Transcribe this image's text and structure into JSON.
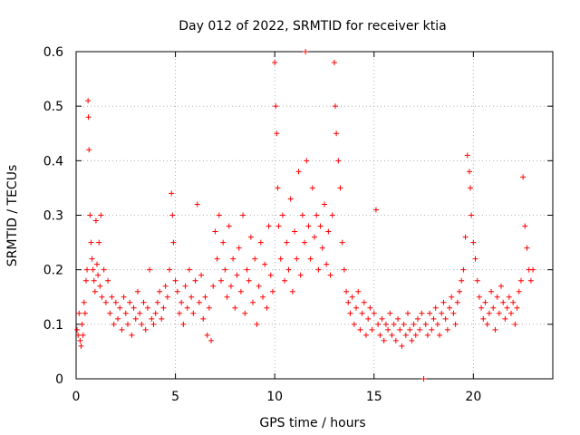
{
  "chart_data": {
    "type": "scatter",
    "title": "Day 012 of 2022, SRMTID for receiver ktia",
    "xlabel": "GPS time / hours",
    "ylabel": "SRMTID / TECUs",
    "xlim": [
      0,
      24
    ],
    "ylim": [
      0,
      0.6
    ],
    "xticks": [
      0,
      5,
      10,
      15,
      20
    ],
    "xtick_labels": [
      "0",
      "5",
      "10",
      "15",
      "20"
    ],
    "yticks": [
      0,
      0.1,
      0.2,
      0.3,
      0.4,
      0.5,
      0.6
    ],
    "ytick_labels": [
      "0",
      "0.1",
      "0.2",
      "0.3",
      "0.4",
      "0.5",
      "0.6"
    ],
    "grid": true,
    "marker": "+",
    "series": [
      {
        "name": "SRMTID",
        "color": "#ff0000",
        "x": [
          0.05,
          0.1,
          0.15,
          0.2,
          0.25,
          0.3,
          0.35,
          0.4,
          0.45,
          0.5,
          0.55,
          0.6,
          0.62,
          0.65,
          0.7,
          0.75,
          0.8,
          0.85,
          0.9,
          0.95,
          1.0,
          1.05,
          1.1,
          1.15,
          1.2,
          1.25,
          1.3,
          1.4,
          1.5,
          1.6,
          1.7,
          1.8,
          1.9,
          2.0,
          2.1,
          2.2,
          2.3,
          2.4,
          2.5,
          2.6,
          2.7,
          2.8,
          2.9,
          3.0,
          3.1,
          3.2,
          3.3,
          3.4,
          3.5,
          3.6,
          3.7,
          3.8,
          3.9,
          4.0,
          4.1,
          4.2,
          4.3,
          4.4,
          4.5,
          4.6,
          4.7,
          4.8,
          4.85,
          4.9,
          5.0,
          5.1,
          5.2,
          5.3,
          5.4,
          5.5,
          5.6,
          5.7,
          5.8,
          5.9,
          6.0,
          6.1,
          6.2,
          6.3,
          6.4,
          6.5,
          6.6,
          6.7,
          6.8,
          6.9,
          7.0,
          7.1,
          7.2,
          7.3,
          7.4,
          7.5,
          7.6,
          7.7,
          7.8,
          7.9,
          8.0,
          8.1,
          8.2,
          8.3,
          8.4,
          8.5,
          8.6,
          8.7,
          8.8,
          8.9,
          9.0,
          9.1,
          9.2,
          9.3,
          9.4,
          9.5,
          9.6,
          9.7,
          9.8,
          9.9,
          10.0,
          10.05,
          10.1,
          10.15,
          10.2,
          10.3,
          10.4,
          10.5,
          10.6,
          10.7,
          10.8,
          10.9,
          11.0,
          11.1,
          11.2,
          11.3,
          11.4,
          11.5,
          11.55,
          11.6,
          11.7,
          11.8,
          11.9,
          12.0,
          12.1,
          12.2,
          12.3,
          12.4,
          12.5,
          12.6,
          12.7,
          12.8,
          12.9,
          13.0,
          13.05,
          13.1,
          13.2,
          13.3,
          13.4,
          13.5,
          13.6,
          13.7,
          13.8,
          13.9,
          14.0,
          14.1,
          14.2,
          14.3,
          14.4,
          14.5,
          14.6,
          14.7,
          14.8,
          14.9,
          15.0,
          15.1,
          15.2,
          15.3,
          15.4,
          15.5,
          15.6,
          15.7,
          15.8,
          15.9,
          16.0,
          16.1,
          16.2,
          16.3,
          16.4,
          16.5,
          16.6,
          16.7,
          16.8,
          16.9,
          17.0,
          17.1,
          17.2,
          17.3,
          17.4,
          17.5,
          17.6,
          17.7,
          17.8,
          17.9,
          18.0,
          18.1,
          18.2,
          18.3,
          18.4,
          18.5,
          18.6,
          18.7,
          18.8,
          18.9,
          19.0,
          19.1,
          19.2,
          19.3,
          19.4,
          19.5,
          19.6,
          19.7,
          19.8,
          19.85,
          19.9,
          20.0,
          20.1,
          20.2,
          20.3,
          20.4,
          20.5,
          20.6,
          20.7,
          20.8,
          20.9,
          21.0,
          21.1,
          21.2,
          21.3,
          21.4,
          21.5,
          21.6,
          21.7,
          21.8,
          21.9,
          22.0,
          22.1,
          22.2,
          22.3,
          22.4,
          22.5,
          22.6,
          22.7,
          22.8,
          22.9,
          23.0
        ],
        "y": [
          0.09,
          0.08,
          0.12,
          0.07,
          0.06,
          0.1,
          0.08,
          0.14,
          0.12,
          0.18,
          0.2,
          0.51,
          0.48,
          0.42,
          0.3,
          0.25,
          0.22,
          0.2,
          0.18,
          0.16,
          0.29,
          0.21,
          0.19,
          0.25,
          0.17,
          0.3,
          0.15,
          0.2,
          0.14,
          0.18,
          0.12,
          0.15,
          0.1,
          0.14,
          0.11,
          0.13,
          0.09,
          0.15,
          0.12,
          0.1,
          0.14,
          0.08,
          0.13,
          0.11,
          0.16,
          0.12,
          0.1,
          0.14,
          0.09,
          0.13,
          0.2,
          0.11,
          0.1,
          0.12,
          0.14,
          0.16,
          0.11,
          0.13,
          0.17,
          0.15,
          0.2,
          0.34,
          0.3,
          0.25,
          0.18,
          0.16,
          0.12,
          0.14,
          0.1,
          0.17,
          0.13,
          0.2,
          0.15,
          0.12,
          0.18,
          0.32,
          0.14,
          0.19,
          0.11,
          0.15,
          0.08,
          0.13,
          0.07,
          0.17,
          0.27,
          0.22,
          0.3,
          0.18,
          0.25,
          0.2,
          0.15,
          0.28,
          0.17,
          0.22,
          0.13,
          0.19,
          0.24,
          0.16,
          0.3,
          0.12,
          0.2,
          0.18,
          0.26,
          0.14,
          0.22,
          0.1,
          0.17,
          0.25,
          0.15,
          0.21,
          0.13,
          0.28,
          0.19,
          0.16,
          0.58,
          0.5,
          0.45,
          0.35,
          0.28,
          0.22,
          0.3,
          0.18,
          0.25,
          0.2,
          0.33,
          0.16,
          0.27,
          0.22,
          0.38,
          0.19,
          0.3,
          0.25,
          0.6,
          0.4,
          0.28,
          0.22,
          0.35,
          0.26,
          0.3,
          0.2,
          0.28,
          0.24,
          0.32,
          0.21,
          0.27,
          0.19,
          0.3,
          0.58,
          0.5,
          0.45,
          0.4,
          0.35,
          0.25,
          0.2,
          0.16,
          0.14,
          0.12,
          0.15,
          0.1,
          0.13,
          0.16,
          0.09,
          0.12,
          0.14,
          0.08,
          0.11,
          0.13,
          0.09,
          0.12,
          0.31,
          0.1,
          0.08,
          0.11,
          0.07,
          0.1,
          0.09,
          0.12,
          0.08,
          0.1,
          0.07,
          0.11,
          0.09,
          0.06,
          0.1,
          0.08,
          0.12,
          0.09,
          0.07,
          0.1,
          0.08,
          0.11,
          0.09,
          0.12,
          0.0,
          0.1,
          0.08,
          0.12,
          0.09,
          0.11,
          0.13,
          0.1,
          0.08,
          0.12,
          0.14,
          0.11,
          0.09,
          0.13,
          0.15,
          0.12,
          0.1,
          0.14,
          0.16,
          0.18,
          0.2,
          0.26,
          0.41,
          0.38,
          0.35,
          0.3,
          0.25,
          0.22,
          0.18,
          0.15,
          0.13,
          0.11,
          0.14,
          0.1,
          0.12,
          0.16,
          0.13,
          0.09,
          0.15,
          0.12,
          0.17,
          0.14,
          0.11,
          0.13,
          0.15,
          0.12,
          0.14,
          0.1,
          0.13,
          0.16,
          0.18,
          0.37,
          0.28,
          0.24,
          0.2,
          0.18,
          0.2
        ]
      }
    ]
  }
}
